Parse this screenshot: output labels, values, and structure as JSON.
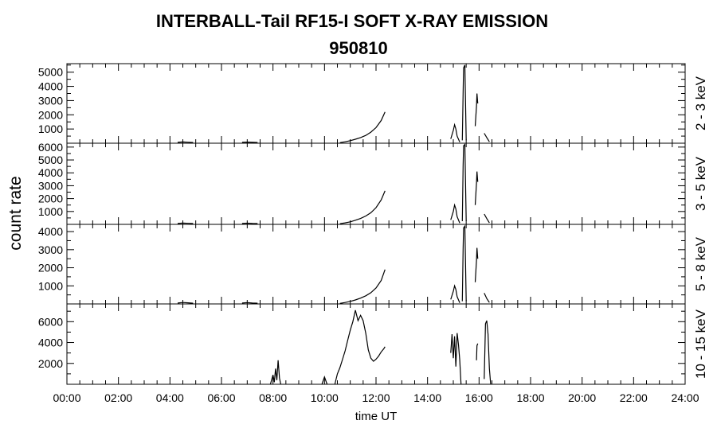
{
  "chart_data": {
    "type": "line",
    "title": "INTERBALL-Tail RF15-I SOFT X-RAY EMISSION",
    "subtitle": "950810",
    "xlabel": "time UT",
    "ylabel": "count rate",
    "xlim_hours": [
      0,
      24
    ],
    "x_ticks": [
      "00:00",
      "02:00",
      "04:00",
      "06:00",
      "08:00",
      "10:00",
      "12:00",
      "14:00",
      "16:00",
      "18:00",
      "20:00",
      "22:00",
      "24:00"
    ],
    "grid": false,
    "color": "#000000",
    "panels": [
      {
        "band": "2 - 3 keV",
        "ylim": [
          0,
          5600
        ],
        "y_ticks": [
          1000,
          2000,
          3000,
          4000,
          5000
        ],
        "segments": [
          {
            "x": [
              4.3,
              4.5,
              4.7,
              4.9
            ],
            "y": [
              60,
              90,
              70,
              50
            ]
          },
          {
            "x": [
              6.8,
              7.0,
              7.2,
              7.4
            ],
            "y": [
              60,
              80,
              60,
              50
            ]
          },
          {
            "x": [
              10.6,
              10.8,
              11.0,
              11.2,
              11.4,
              11.6,
              11.8,
              12.0,
              12.2,
              12.35
            ],
            "y": [
              40,
              100,
              180,
              280,
              400,
              550,
              780,
              1100,
              1600,
              2200
            ]
          },
          {
            "x": [
              14.9,
              15.0,
              15.05,
              15.1,
              15.15,
              15.25
            ],
            "y": [
              300,
              900,
              1300,
              1000,
              500,
              80
            ]
          },
          {
            "x": [
              15.35,
              15.38,
              15.4,
              15.45,
              15.5
            ],
            "y": [
              200,
              3500,
              5300,
              5500,
              200
            ]
          },
          {
            "x": [
              15.85,
              15.9,
              15.92,
              15.95
            ],
            "y": [
              1200,
              2600,
              3500,
              2800
            ]
          },
          {
            "x": [
              16.2,
              16.3,
              16.4
            ],
            "y": [
              700,
              400,
              100
            ]
          }
        ]
      },
      {
        "band": "3 - 5 keV",
        "ylim": [
          0,
          6300
        ],
        "y_ticks": [
          1000,
          2000,
          3000,
          4000,
          5000,
          6000
        ],
        "segments": [
          {
            "x": [
              4.3,
              4.5,
              4.7,
              4.9
            ],
            "y": [
              70,
              100,
              80,
              60
            ]
          },
          {
            "x": [
              6.8,
              7.0,
              7.2,
              7.4
            ],
            "y": [
              70,
              90,
              70,
              60
            ]
          },
          {
            "x": [
              10.6,
              10.8,
              11.0,
              11.2,
              11.4,
              11.6,
              11.8,
              12.0,
              12.2,
              12.35
            ],
            "y": [
              50,
              120,
              200,
              320,
              460,
              650,
              900,
              1300,
              1900,
              2600
            ]
          },
          {
            "x": [
              14.9,
              15.0,
              15.05,
              15.1,
              15.15,
              15.25
            ],
            "y": [
              350,
              1000,
              1500,
              1200,
              600,
              100
            ]
          },
          {
            "x": [
              15.35,
              15.38,
              15.4,
              15.45,
              15.5
            ],
            "y": [
              250,
              4500,
              6100,
              6200,
              250
            ]
          },
          {
            "x": [
              15.85,
              15.9,
              15.92,
              15.95
            ],
            "y": [
              1500,
              3200,
              4100,
              3300
            ]
          },
          {
            "x": [
              16.2,
              16.3,
              16.4
            ],
            "y": [
              800,
              450,
              120
            ]
          }
        ]
      },
      {
        "band": "5 - 8 keV",
        "ylim": [
          0,
          4400
        ],
        "y_ticks": [
          1000,
          2000,
          3000,
          4000
        ],
        "segments": [
          {
            "x": [
              4.3,
              4.5,
              4.7,
              4.9
            ],
            "y": [
              50,
              80,
              60,
              40
            ]
          },
          {
            "x": [
              6.8,
              7.0,
              7.2,
              7.4
            ],
            "y": [
              50,
              70,
              50,
              40
            ]
          },
          {
            "x": [
              10.6,
              10.8,
              11.0,
              11.2,
              11.4,
              11.6,
              11.8,
              12.0,
              12.2,
              12.35
            ],
            "y": [
              30,
              80,
              140,
              220,
              320,
              450,
              620,
              880,
              1300,
              1900
            ]
          },
          {
            "x": [
              14.9,
              15.0,
              15.05,
              15.1,
              15.15,
              15.25
            ],
            "y": [
              250,
              700,
              1000,
              800,
              400,
              60
            ]
          },
          {
            "x": [
              15.35,
              15.38,
              15.4,
              15.45,
              15.5
            ],
            "y": [
              150,
              3000,
              4200,
              4300,
              150
            ]
          },
          {
            "x": [
              15.85,
              15.9,
              15.92,
              15.95
            ],
            "y": [
              1200,
              2400,
              3100,
              2500
            ]
          },
          {
            "x": [
              16.2,
              16.3,
              16.4
            ],
            "y": [
              600,
              300,
              80
            ]
          }
        ]
      },
      {
        "band": "10 - 15 keV",
        "ylim": [
          0,
          7700
        ],
        "y_ticks": [
          2000,
          4000,
          6000
        ],
        "segments": [
          {
            "x": [
              7.9,
              8.0,
              8.05,
              8.1,
              8.15,
              8.2,
              8.25,
              8.3
            ],
            "y": [
              0,
              900,
              200,
              1500,
              400,
              2300,
              600,
              0
            ]
          },
          {
            "x": [
              9.9,
              10.0,
              10.1
            ],
            "y": [
              0,
              700,
              0
            ]
          },
          {
            "x": [
              10.4,
              10.5,
              10.6,
              10.7,
              10.8,
              10.9,
              11.0,
              11.1,
              11.2,
              11.3,
              11.4,
              11.5,
              11.6,
              11.7,
              11.8,
              11.9,
              12.0,
              12.1,
              12.2,
              12.3,
              12.35
            ],
            "y": [
              0,
              1000,
              1600,
              2400,
              3200,
              4200,
              5200,
              6000,
              7100,
              6100,
              6600,
              6100,
              4900,
              3300,
              2500,
              2200,
              2400,
              2700,
              3100,
              3400,
              3600
            ]
          },
          {
            "x": [
              14.9,
              14.95,
              15.0,
              15.05,
              15.1,
              15.15,
              15.2,
              15.25,
              15.3
            ],
            "y": [
              3000,
              4800,
              2500,
              4600,
              1700,
              4900,
              3800,
              2300,
              0
            ]
          },
          {
            "x": [
              15.9,
              15.92,
              15.95
            ],
            "y": [
              2300,
              3700,
              3900
            ]
          },
          {
            "x": [
              16.2,
              16.25,
              16.3,
              16.35,
              16.4,
              16.45
            ],
            "y": [
              500,
              5800,
              6100,
              4800,
              1500,
              0
            ]
          }
        ]
      }
    ]
  }
}
